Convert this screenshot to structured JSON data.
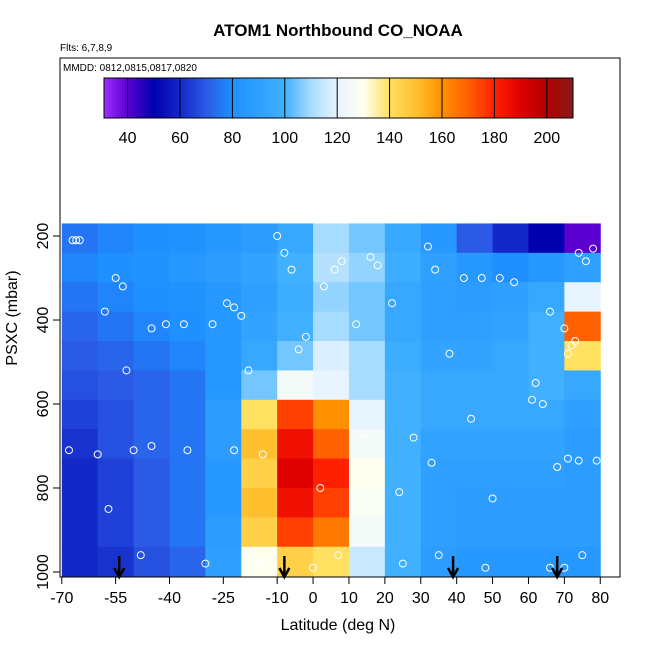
{
  "chart_data": {
    "type": "heatmap",
    "title": "ATOM1 Northbound CO_NOAA",
    "subtitle": "Flts: 6,7,8,9",
    "annotation": "MMDD: 0812,0815,0817,0820",
    "x_label": "Latitude (deg N)",
    "y_label": "PSXC (mbar)",
    "xlim": [
      -70.5,
      85.5
    ],
    "ylim": [
      1012,
      -224
    ],
    "xticks": [
      -70,
      -55,
      -40,
      -25,
      -10,
      0,
      10,
      20,
      30,
      40,
      50,
      60,
      70,
      80
    ],
    "yticks": [
      200,
      400,
      600,
      800,
      1000
    ],
    "x_edges": [
      -70,
      -60,
      -50,
      -40,
      -30,
      -20,
      -10,
      0,
      10,
      20,
      30,
      40,
      50,
      60,
      70,
      80
    ],
    "y_edges": [
      170,
      240,
      310,
      380,
      450,
      520,
      590,
      660,
      730,
      800,
      870,
      940,
      1010
    ],
    "values": [
      [
        75,
        78,
        80,
        82,
        85,
        88,
        95,
        110,
        105,
        95,
        85,
        70,
        60,
        50,
        40
      ],
      [
        78,
        80,
        82,
        85,
        88,
        92,
        100,
        112,
        108,
        98,
        90,
        85,
        80,
        85,
        90
      ],
      [
        75,
        78,
        80,
        82,
        85,
        90,
        98,
        108,
        105,
        95,
        90,
        88,
        90,
        95,
        120
      ],
      [
        72,
        75,
        78,
        80,
        85,
        92,
        100,
        110,
        105,
        95,
        90,
        90,
        92,
        100,
        170
      ],
      [
        70,
        72,
        75,
        78,
        85,
        95,
        105,
        118,
        110,
        98,
        92,
        92,
        95,
        100,
        140
      ],
      [
        68,
        70,
        72,
        75,
        85,
        105,
        125,
        120,
        110,
        100,
        95,
        95,
        95,
        100,
        95
      ],
      [
        65,
        68,
        72,
        75,
        88,
        140,
        175,
        160,
        120,
        100,
        95,
        95,
        95,
        95,
        90
      ],
      [
        62,
        68,
        72,
        75,
        88,
        150,
        185,
        170,
        125,
        100,
        92,
        92,
        92,
        92,
        88
      ],
      [
        60,
        65,
        70,
        75,
        85,
        145,
        190,
        180,
        130,
        100,
        90,
        90,
        90,
        90,
        88
      ],
      [
        60,
        65,
        70,
        75,
        85,
        150,
        185,
        175,
        128,
        100,
        90,
        88,
        88,
        88,
        88
      ],
      [
        60,
        65,
        70,
        75,
        88,
        145,
        175,
        165,
        125,
        100,
        90,
        88,
        88,
        88,
        88
      ],
      [
        60,
        62,
        68,
        72,
        90,
        130,
        145,
        140,
        115,
        100,
        88,
        85,
        85,
        85,
        85
      ]
    ],
    "colorbar_lim": [
      31,
      210
    ],
    "colorbar_ticks": [
      40,
      60,
      80,
      100,
      120,
      140,
      160,
      180,
      200
    ],
    "colorscale": [
      {
        "value": 31,
        "color": "#9b30ff"
      },
      {
        "value": 40,
        "color": "#5a00d0"
      },
      {
        "value": 50,
        "color": "#0000b0"
      },
      {
        "value": 60,
        "color": "#1428c8"
      },
      {
        "value": 70,
        "color": "#2a5ae6"
      },
      {
        "value": 80,
        "color": "#1e90ff"
      },
      {
        "value": 100,
        "color": "#40b0ff"
      },
      {
        "value": 110,
        "color": "#a8dcff"
      },
      {
        "value": 120,
        "color": "#e8f4ff"
      },
      {
        "value": 130,
        "color": "#fffff0"
      },
      {
        "value": 140,
        "color": "#ffe060"
      },
      {
        "value": 150,
        "color": "#ffc030"
      },
      {
        "value": 160,
        "color": "#ff9000"
      },
      {
        "value": 170,
        "color": "#ff6000"
      },
      {
        "value": 180,
        "color": "#ff2000"
      },
      {
        "value": 190,
        "color": "#e00000"
      },
      {
        "value": 200,
        "color": "#b00000"
      },
      {
        "value": 210,
        "color": "#8b1a1a"
      }
    ],
    "samples": {
      "x": [
        -67,
        -66,
        -65,
        -58,
        -55,
        -53,
        -52,
        -45,
        -41,
        -36,
        -28,
        -24,
        -22,
        -20,
        -18,
        -10,
        -8,
        -6,
        -4,
        -2,
        3,
        6,
        8,
        12,
        16,
        18,
        22,
        24,
        28,
        32,
        34,
        38,
        42,
        47,
        52,
        56,
        61,
        64,
        66,
        70,
        71,
        72,
        73,
        74,
        76,
        78,
        -68,
        -60,
        -50,
        -45,
        -35,
        -22,
        -14,
        2,
        14,
        33,
        44,
        50,
        62,
        68,
        71,
        74,
        79,
        -57,
        -48,
        -30,
        -15,
        0,
        7,
        25,
        35,
        48,
        66,
        70,
        75
      ],
      "y": [
        210,
        210,
        210,
        380,
        300,
        320,
        520,
        420,
        410,
        410,
        410,
        360,
        370,
        390,
        520,
        200,
        240,
        280,
        470,
        440,
        320,
        280,
        260,
        410,
        250,
        270,
        360,
        810,
        680,
        225,
        280,
        480,
        300,
        300,
        300,
        310,
        590,
        600,
        380,
        420,
        480,
        460,
        450,
        240,
        260,
        230,
        710,
        720,
        710,
        700,
        710,
        710,
        720,
        800,
        670,
        740,
        635,
        825,
        550,
        750,
        730,
        735,
        735,
        850,
        960,
        980,
        980,
        990,
        960,
        980,
        960,
        990,
        990,
        990,
        960
      ],
      "color": "#ffffff"
    },
    "arrows_x": [
      -54,
      -8,
      39,
      68
    ]
  }
}
